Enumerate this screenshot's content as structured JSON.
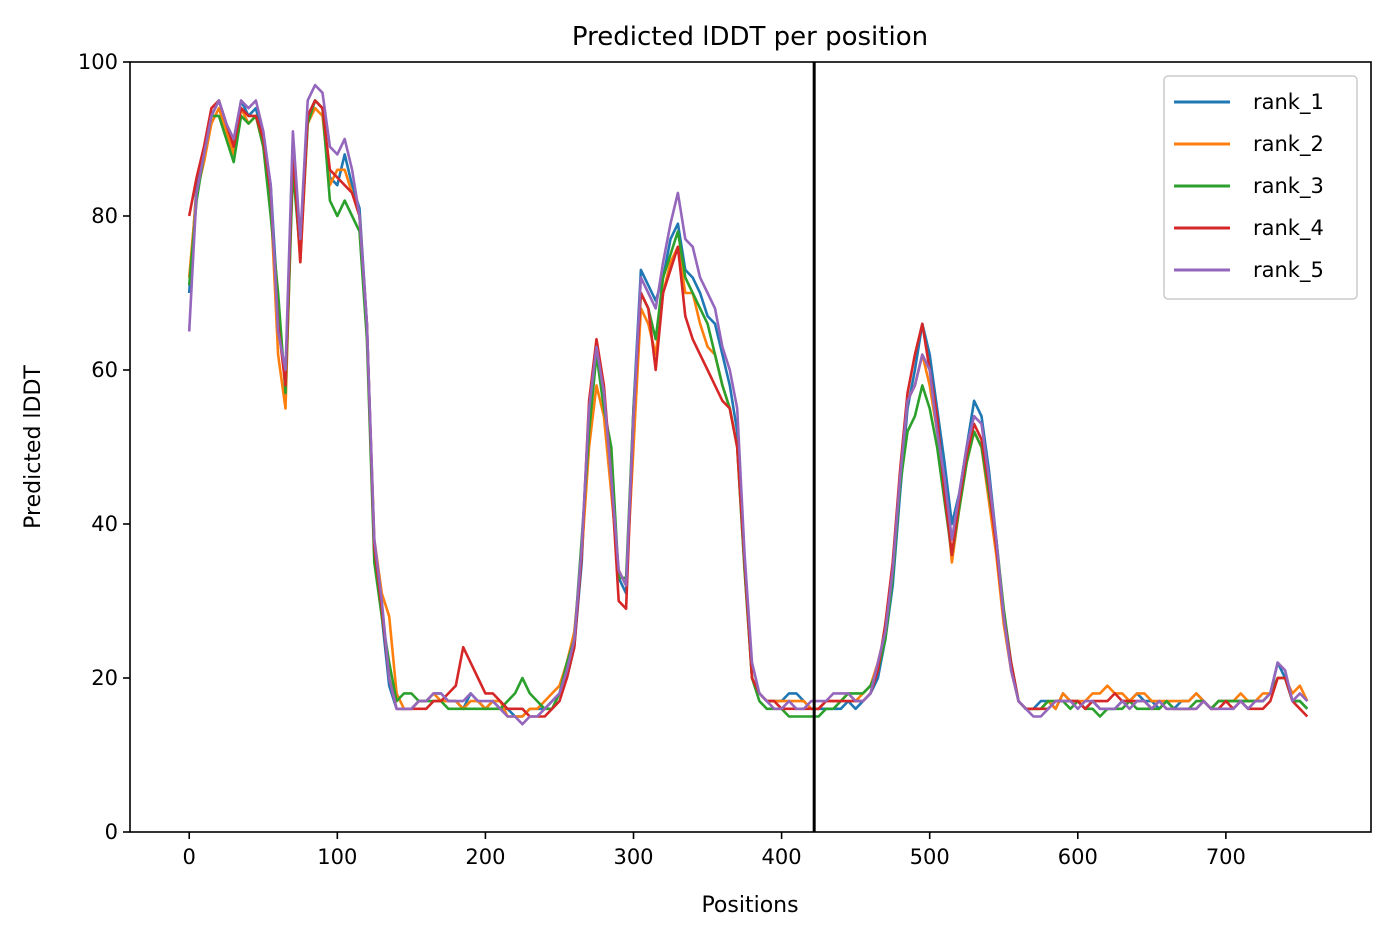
{
  "chart_data": {
    "type": "line",
    "title": "Predicted lDDT per position",
    "xlabel": "Positions",
    "ylabel": "Predicted lDDT",
    "xlim": [
      -40,
      798
    ],
    "ylim": [
      0,
      100
    ],
    "x_ticks": [
      0,
      100,
      200,
      300,
      400,
      500,
      600,
      700
    ],
    "y_ticks": [
      0,
      20,
      40,
      60,
      80,
      100
    ],
    "vline_x": 422,
    "legend_position": "top-right",
    "grid": false,
    "x_step": 5,
    "series": [
      {
        "name": "rank_1",
        "color": "#1f77b4",
        "values": [
          70,
          84,
          88,
          93,
          95,
          92,
          89,
          95,
          93,
          94,
          90,
          84,
          68,
          58,
          90,
          76,
          93,
          95,
          94,
          85,
          84,
          88,
          84,
          81,
          66,
          36,
          28,
          19,
          16,
          16,
          16,
          17,
          17,
          18,
          18,
          17,
          17,
          16,
          18,
          17,
          16,
          17,
          16,
          16,
          15,
          15,
          16,
          16,
          16,
          17,
          18,
          20,
          24,
          35,
          55,
          62,
          56,
          45,
          33,
          31,
          55,
          73,
          71,
          69,
          72,
          77,
          79,
          73,
          72,
          70,
          67,
          66,
          62,
          58,
          52,
          35,
          20,
          18,
          17,
          17,
          17,
          18,
          18,
          17,
          16,
          16,
          16,
          16,
          16,
          17,
          16,
          17,
          18,
          20,
          25,
          32,
          44,
          55,
          60,
          66,
          62,
          55,
          48,
          40,
          44,
          50,
          56,
          54,
          47,
          38,
          28,
          22,
          17,
          16,
          16,
          17,
          17,
          16,
          18,
          17,
          17,
          16,
          17,
          16,
          16,
          16,
          17,
          17,
          18,
          17,
          17,
          16,
          17,
          16,
          17,
          17,
          18,
          17,
          16,
          17,
          17,
          17,
          17,
          17,
          17,
          17,
          18,
          22,
          20,
          17,
          17,
          16
        ]
      },
      {
        "name": "rank_2",
        "color": "#ff7f0e",
        "values": [
          72,
          83,
          87,
          92,
          94,
          91,
          88,
          94,
          92,
          93,
          89,
          82,
          62,
          55,
          88,
          74,
          92,
          94,
          93,
          84,
          86,
          86,
          83,
          80,
          65,
          38,
          31,
          28,
          18,
          16,
          16,
          17,
          17,
          18,
          17,
          17,
          17,
          16,
          17,
          17,
          16,
          17,
          17,
          15,
          15,
          15,
          16,
          16,
          17,
          18,
          19,
          22,
          26,
          36,
          50,
          58,
          54,
          44,
          34,
          32,
          50,
          68,
          66,
          62,
          70,
          74,
          76,
          70,
          70,
          66,
          63,
          62,
          58,
          55,
          50,
          34,
          20,
          18,
          17,
          17,
          17,
          17,
          17,
          17,
          16,
          16,
          17,
          17,
          17,
          18,
          17,
          18,
          19,
          22,
          26,
          34,
          46,
          56,
          58,
          62,
          58,
          52,
          45,
          35,
          42,
          48,
          52,
          50,
          43,
          36,
          27,
          21,
          17,
          16,
          16,
          16,
          17,
          16,
          18,
          17,
          17,
          17,
          18,
          18,
          19,
          18,
          18,
          17,
          18,
          18,
          17,
          17,
          17,
          17,
          17,
          17,
          18,
          17,
          16,
          17,
          17,
          17,
          18,
          17,
          17,
          18,
          18,
          20,
          20,
          18,
          19,
          17
        ]
      },
      {
        "name": "rank_3",
        "color": "#2ca02c",
        "values": [
          71,
          82,
          88,
          93,
          93,
          90,
          87,
          93,
          92,
          93,
          89,
          80,
          70,
          57,
          86,
          75,
          92,
          95,
          94,
          82,
          80,
          82,
          80,
          78,
          64,
          35,
          28,
          22,
          17,
          18,
          18,
          17,
          17,
          17,
          17,
          16,
          16,
          16,
          16,
          16,
          16,
          16,
          16,
          17,
          18,
          20,
          18,
          17,
          16,
          16,
          18,
          22,
          25,
          38,
          52,
          62,
          55,
          50,
          33,
          33,
          55,
          70,
          68,
          64,
          72,
          75,
          78,
          72,
          70,
          68,
          66,
          62,
          58,
          55,
          50,
          34,
          20,
          17,
          16,
          16,
          16,
          15,
          15,
          15,
          15,
          15,
          16,
          16,
          17,
          18,
          18,
          18,
          19,
          21,
          25,
          33,
          45,
          52,
          54,
          58,
          55,
          50,
          43,
          36,
          42,
          48,
          52,
          50,
          44,
          38,
          29,
          22,
          17,
          16,
          16,
          16,
          17,
          17,
          17,
          16,
          17,
          16,
          16,
          15,
          16,
          16,
          16,
          17,
          16,
          16,
          16,
          16,
          17,
          16,
          16,
          16,
          17,
          17,
          16,
          17,
          17,
          17,
          17,
          17,
          17,
          17,
          18,
          20,
          20,
          17,
          17,
          16
        ]
      },
      {
        "name": "rank_4",
        "color": "#d62728",
        "values": [
          80,
          85,
          89,
          94,
          95,
          92,
          89,
          94,
          93,
          93,
          90,
          83,
          66,
          58,
          89,
          74,
          93,
          95,
          94,
          86,
          85,
          84,
          83,
          80,
          66,
          37,
          29,
          20,
          16,
          16,
          16,
          16,
          16,
          17,
          17,
          18,
          19,
          24,
          22,
          20,
          18,
          18,
          17,
          16,
          16,
          16,
          15,
          15,
          15,
          16,
          17,
          20,
          24,
          36,
          56,
          64,
          58,
          46,
          30,
          29,
          54,
          70,
          68,
          60,
          70,
          73,
          76,
          67,
          64,
          62,
          60,
          58,
          56,
          55,
          50,
          35,
          20,
          18,
          17,
          17,
          16,
          16,
          16,
          16,
          16,
          16,
          17,
          17,
          17,
          17,
          17,
          17,
          18,
          21,
          27,
          35,
          47,
          57,
          62,
          66,
          60,
          54,
          44,
          36,
          43,
          49,
          53,
          51,
          45,
          37,
          28,
          22,
          17,
          16,
          16,
          16,
          16,
          17,
          17,
          17,
          17,
          16,
          17,
          17,
          17,
          18,
          17,
          17,
          17,
          17,
          16,
          17,
          16,
          16,
          16,
          16,
          16,
          17,
          16,
          16,
          17,
          16,
          17,
          16,
          16,
          16,
          17,
          20,
          20,
          17,
          16,
          15
        ]
      },
      {
        "name": "rank_5",
        "color": "#9467bd",
        "values": [
          65,
          83,
          88,
          93,
          95,
          92,
          90,
          95,
          94,
          95,
          91,
          84,
          65,
          60,
          91,
          77,
          95,
          97,
          96,
          89,
          88,
          90,
          86,
          80,
          66,
          38,
          30,
          20,
          16,
          16,
          16,
          17,
          17,
          18,
          18,
          17,
          17,
          17,
          18,
          17,
          17,
          17,
          16,
          15,
          15,
          14,
          15,
          15,
          16,
          17,
          18,
          21,
          25,
          37,
          55,
          63,
          57,
          46,
          34,
          32,
          54,
          72,
          70,
          68,
          74,
          79,
          83,
          77,
          76,
          72,
          70,
          68,
          63,
          60,
          55,
          36,
          22,
          18,
          17,
          16,
          16,
          17,
          16,
          16,
          17,
          17,
          17,
          18,
          18,
          18,
          17,
          17,
          18,
          22,
          26,
          34,
          46,
          56,
          58,
          62,
          60,
          52,
          46,
          38,
          44,
          50,
          54,
          53,
          46,
          38,
          28,
          21,
          17,
          16,
          15,
          15,
          16,
          17,
          17,
          17,
          16,
          17,
          17,
          16,
          16,
          16,
          17,
          16,
          17,
          17,
          16,
          17,
          16,
          16,
          16,
          16,
          16,
          17,
          16,
          16,
          16,
          16,
          17,
          16,
          17,
          17,
          18,
          22,
          21,
          17,
          18,
          17
        ]
      }
    ]
  }
}
